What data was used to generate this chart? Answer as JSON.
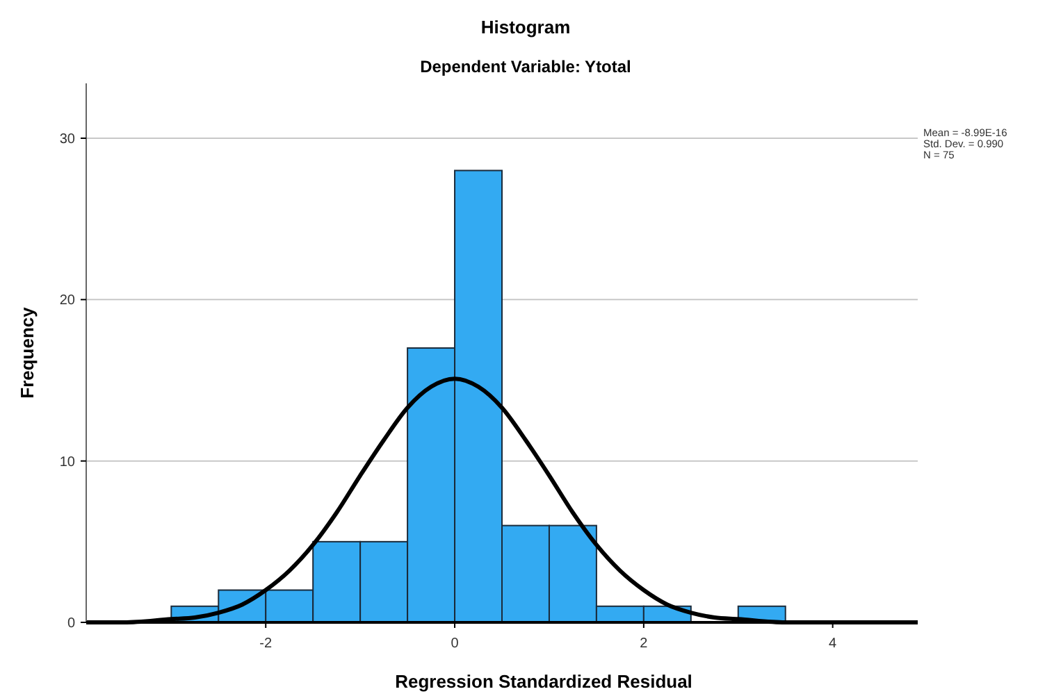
{
  "chart_data": {
    "type": "histogram",
    "title": "Histogram",
    "subtitle": "Dependent Variable: Ytotal",
    "xlabel": "Regression Standardized Residual",
    "ylabel": "Frequency",
    "annotations": [
      "Mean = -8.99E-16",
      "Std. Dev. = 0.990",
      "N = 75"
    ],
    "bins": [
      -3,
      -2.5,
      -2,
      -1.5,
      -1,
      -0.5,
      0,
      0.5,
      1,
      1.5,
      2,
      2.5,
      3,
      3.5
    ],
    "series": [
      {
        "color": "#33aaf2",
        "values": [
          1,
          2,
          2,
          5,
          5,
          17,
          28,
          6,
          6,
          1,
          1,
          0,
          1
        ]
      },
      {
        "type": "line",
        "color": "#000000",
        "x": [
          -3.9,
          -3.5,
          -3,
          -2.75,
          -2.5,
          -2.25,
          -2,
          -1.75,
          -1.5,
          -1.25,
          -1,
          -0.75,
          -0.5,
          -0.25,
          0,
          0.25,
          0.5,
          0.75,
          1,
          1.25,
          1.5,
          1.75,
          2,
          2.25,
          2.5,
          2.75,
          3,
          3.5,
          4,
          4.9
        ],
        "values": [
          0,
          0,
          0.2,
          0.3,
          0.6,
          1.1,
          2,
          3.2,
          4.8,
          6.8,
          9.1,
          11.3,
          13.3,
          14.6,
          15.1,
          14.6,
          13.3,
          11.3,
          9.1,
          6.8,
          4.8,
          3.2,
          2,
          1.1,
          0.6,
          0.3,
          0.2,
          0,
          0,
          0
        ]
      }
    ],
    "xlim": [
      -3.9,
      4.9
    ],
    "ylim": [
      0,
      33.4
    ],
    "xticks": [
      -2,
      0,
      2,
      4
    ],
    "yticks": [
      0,
      10,
      20,
      30
    ],
    "grid": "y",
    "marker": "none",
    "line_style": "solid"
  }
}
